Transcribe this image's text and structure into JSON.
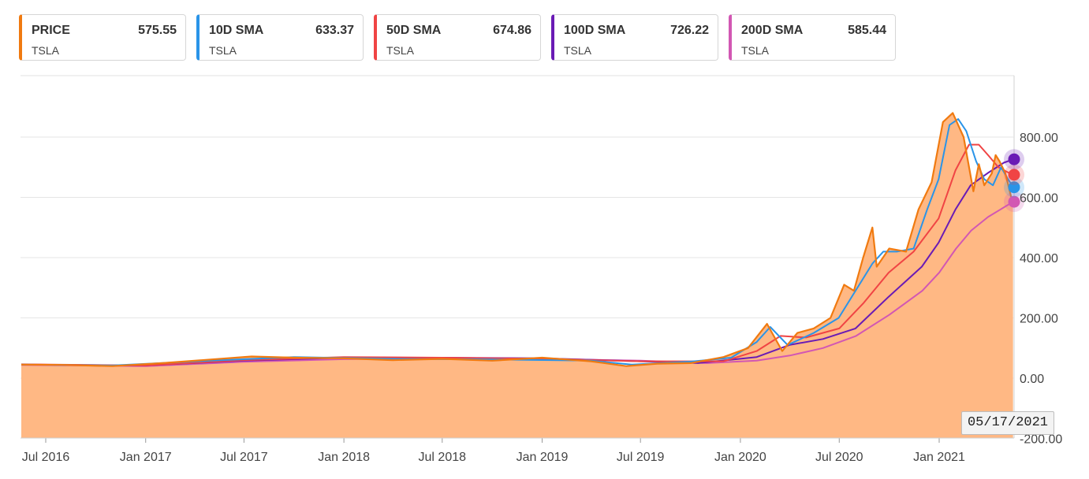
{
  "legend": [
    {
      "label": "PRICE",
      "value": "575.55",
      "ticker": "TSLA",
      "color": "#f07a10"
    },
    {
      "label": "10D SMA",
      "value": "633.37",
      "ticker": "TSLA",
      "color": "#2a94e8"
    },
    {
      "label": "50D SMA",
      "value": "674.86",
      "ticker": "TSLA",
      "color": "#f04444"
    },
    {
      "label": "100D SMA",
      "value": "726.22",
      "ticker": "TSLA",
      "color": "#6a1bb5"
    },
    {
      "label": "200D SMA",
      "value": "585.44",
      "ticker": "TSLA",
      "color": "#d257b3"
    }
  ],
  "hover_date": "05/17/2021",
  "chart_data": {
    "type": "area",
    "title": "",
    "xlabel": "",
    "ylabel": "",
    "ylim": [
      -200,
      1000
    ],
    "y_ticks": [
      "800.00",
      "600.00",
      "400.00",
      "200.00",
      "0.00",
      "-200.00"
    ],
    "y_tick_values": [
      800,
      600,
      400,
      200,
      0,
      -200
    ],
    "x_ticks": [
      "Jul 2016",
      "Jan 2017",
      "Jul 2017",
      "Jan 2018",
      "Jul 2018",
      "Jan 2019",
      "Jul 2019",
      "Jan 2020",
      "Jul 2020",
      "Jan 2021"
    ],
    "x_tick_values": [
      "2016-07-01",
      "2017-01-01",
      "2017-07-01",
      "2018-01-01",
      "2018-07-01",
      "2019-01-01",
      "2019-07-01",
      "2020-01-01",
      "2020-07-01",
      "2021-01-01"
    ],
    "grid": true,
    "y_axis_side": "right",
    "series": [
      {
        "name": "PRICE",
        "color": "#f07a10",
        "fill": "#ffb884",
        "x": [
          "2016-05-17",
          "2016-08-01",
          "2016-11-01",
          "2017-02-01",
          "2017-05-01",
          "2017-07-15",
          "2017-10-01",
          "2018-01-01",
          "2018-04-01",
          "2018-07-01",
          "2018-10-01",
          "2019-01-01",
          "2019-04-01",
          "2019-06-05",
          "2019-08-01",
          "2019-10-01",
          "2019-12-01",
          "2020-01-15",
          "2020-02-19",
          "2020-03-18",
          "2020-04-15",
          "2020-05-15",
          "2020-06-15",
          "2020-07-10",
          "2020-07-28",
          "2020-08-14",
          "2020-08-31",
          "2020-09-08",
          "2020-10-01",
          "2020-11-01",
          "2020-11-24",
          "2020-12-18",
          "2021-01-08",
          "2021-01-26",
          "2021-02-15",
          "2021-03-05",
          "2021-03-15",
          "2021-03-25",
          "2021-04-08",
          "2021-04-15",
          "2021-04-22",
          "2021-05-03",
          "2021-05-17"
        ],
        "y": [
          45,
          44,
          40,
          50,
          62,
          72,
          68,
          66,
          60,
          64,
          58,
          68,
          56,
          40,
          48,
          50,
          70,
          100,
          180,
          90,
          150,
          165,
          200,
          310,
          290,
          400,
          500,
          370,
          430,
          420,
          560,
          650,
          850,
          880,
          800,
          620,
          710,
          640,
          680,
          740,
          720,
          680,
          575
        ]
      },
      {
        "name": "10D SMA",
        "color": "#2a94e8",
        "x": [
          "2016-05-17",
          "2016-11-01",
          "2017-05-01",
          "2017-10-01",
          "2018-04-01",
          "2018-10-01",
          "2019-04-01",
          "2019-06-15",
          "2019-10-01",
          "2019-12-15",
          "2020-01-31",
          "2020-02-25",
          "2020-03-28",
          "2020-05-15",
          "2020-06-30",
          "2020-07-31",
          "2020-08-31",
          "2020-09-20",
          "2020-10-15",
          "2020-11-15",
          "2020-12-10",
          "2020-12-31",
          "2021-01-20",
          "2021-02-05",
          "2021-02-20",
          "2021-03-10",
          "2021-03-25",
          "2021-04-10",
          "2021-04-25",
          "2021-05-17"
        ],
        "y": [
          45,
          42,
          58,
          70,
          64,
          62,
          58,
          45,
          55,
          68,
          120,
          170,
          110,
          150,
          200,
          290,
          380,
          420,
          420,
          430,
          560,
          660,
          840,
          860,
          820,
          720,
          660,
          640,
          700,
          633
        ]
      },
      {
        "name": "50D SMA",
        "color": "#f04444",
        "x": [
          "2016-05-17",
          "2017-01-01",
          "2017-07-01",
          "2018-01-01",
          "2018-07-01",
          "2019-01-01",
          "2019-07-01",
          "2019-12-01",
          "2020-01-31",
          "2020-03-15",
          "2020-05-01",
          "2020-07-01",
          "2020-08-15",
          "2020-09-30",
          "2020-11-15",
          "2020-12-31",
          "2021-01-31",
          "2021-02-25",
          "2021-03-15",
          "2021-04-01",
          "2021-04-20",
          "2021-05-17"
        ],
        "y": [
          46,
          42,
          60,
          70,
          68,
          64,
          56,
          56,
          90,
          140,
          135,
          165,
          250,
          350,
          420,
          530,
          690,
          775,
          775,
          740,
          700,
          674
        ]
      },
      {
        "name": "100D SMA",
        "color": "#6a1bb5",
        "x": [
          "2016-05-17",
          "2017-01-01",
          "2017-07-01",
          "2018-01-01",
          "2018-07-01",
          "2019-01-01",
          "2019-07-01",
          "2019-10-15",
          "2020-01-31",
          "2020-03-31",
          "2020-06-01",
          "2020-07-31",
          "2020-09-30",
          "2020-11-30",
          "2020-12-31",
          "2021-01-31",
          "2021-02-28",
          "2021-03-31",
          "2021-04-30",
          "2021-05-17"
        ],
        "y": [
          45,
          42,
          58,
          68,
          68,
          66,
          56,
          50,
          70,
          110,
          130,
          165,
          270,
          370,
          450,
          560,
          640,
          680,
          715,
          726
        ]
      },
      {
        "name": "200D SMA",
        "color": "#d257b3",
        "x": [
          "2016-05-17",
          "2017-01-01",
          "2017-07-01",
          "2018-01-01",
          "2018-07-01",
          "2019-01-01",
          "2019-07-01",
          "2019-11-01",
          "2020-01-31",
          "2020-04-01",
          "2020-06-01",
          "2020-08-01",
          "2020-10-01",
          "2020-12-01",
          "2021-01-01",
          "2021-02-01",
          "2021-03-01",
          "2021-04-01",
          "2021-05-17"
        ],
        "y": [
          44,
          40,
          54,
          63,
          65,
          64,
          58,
          50,
          58,
          75,
          100,
          140,
          210,
          290,
          350,
          430,
          490,
          535,
          585
        ]
      }
    ]
  }
}
